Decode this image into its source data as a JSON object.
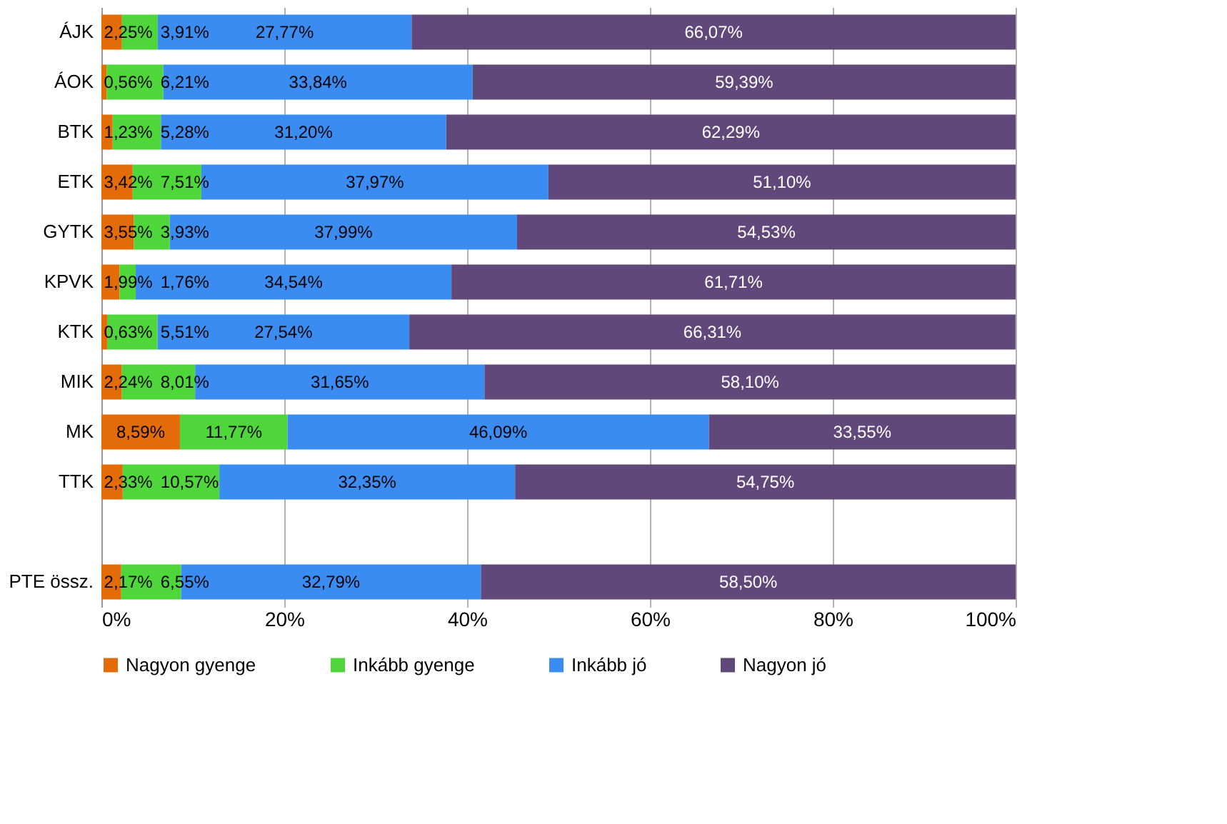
{
  "chart_data": {
    "type": "bar",
    "orientation": "horizontal",
    "stacked": true,
    "categories": [
      "ÁJK",
      "ÁOK",
      "BTK",
      "ETK",
      "GYTK",
      "KPVK",
      "KTK",
      "MIK",
      "MK",
      "TTK",
      null,
      "PTE össz."
    ],
    "series": [
      {
        "name": "Nagyon gyenge",
        "color": "#e36c09",
        "values": [
          2.25,
          0.56,
          1.23,
          3.42,
          3.55,
          1.99,
          0.63,
          2.24,
          8.59,
          2.33,
          null,
          2.17
        ],
        "value_labels": [
          "2,25%",
          "0,56%",
          "1,23%",
          "3,42%",
          "3,55%",
          "1,99%",
          "0,63%",
          "2,24%",
          "8,59%",
          "2,33%",
          null,
          "2,17%"
        ]
      },
      {
        "name": "Inkább gyenge",
        "color": "#4fd63a",
        "values": [
          3.91,
          6.21,
          5.28,
          7.51,
          3.93,
          1.76,
          5.51,
          8.01,
          11.77,
          10.57,
          null,
          6.55
        ],
        "value_labels": [
          "3,91%",
          "6,21%",
          "5,28%",
          "7,51%",
          "3,93%",
          "1,76%",
          "5,51%",
          "8,01%",
          "11,77%",
          "10,57%",
          null,
          "6,55%"
        ]
      },
      {
        "name": "Inkább jó",
        "color": "#3b8cf0",
        "values": [
          27.77,
          33.84,
          31.2,
          37.97,
          37.99,
          34.54,
          27.54,
          31.65,
          46.09,
          32.35,
          null,
          32.79
        ],
        "value_labels": [
          "27,77%",
          "33,84%",
          "31,20%",
          "37,97%",
          "37,99%",
          "34,54%",
          "27,54%",
          "31,65%",
          "46,09%",
          "32,35%",
          null,
          "32,79%"
        ]
      },
      {
        "name": "Nagyon jó",
        "color": "#60497a",
        "values": [
          66.07,
          59.39,
          62.29,
          51.1,
          54.53,
          61.71,
          66.31,
          58.1,
          33.55,
          54.75,
          null,
          58.5
        ],
        "value_labels": [
          "66,07%",
          "59,39%",
          "62,29%",
          "51,10%",
          "54,53%",
          "61,71%",
          "66,31%",
          "58,10%",
          "33,55%",
          "54,75%",
          null,
          "58,50%"
        ]
      }
    ],
    "xlim": [
      0,
      100
    ],
    "xticks": [
      {
        "value": 0,
        "label": "0%"
      },
      {
        "value": 20,
        "label": "20%"
      },
      {
        "value": 40,
        "label": "40%"
      },
      {
        "value": 60,
        "label": "60%"
      },
      {
        "value": 80,
        "label": "80%"
      },
      {
        "value": 100,
        "label": "100%"
      }
    ],
    "grid": "x",
    "legend": "bottom"
  }
}
